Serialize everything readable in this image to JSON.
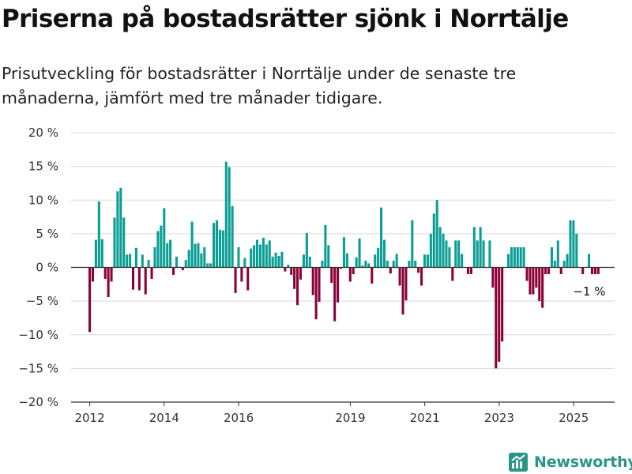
{
  "title": "Priserna på bostadsrätter sjönk i Norrtälje",
  "subtitle": "Prisutveckling för bostadsrätter i Norrtälje under de senaste tre månaderna, jämfört med tre månader tidigare.",
  "brand": "Newsworthy",
  "colors": {
    "positive": "#0a9e94",
    "negative": "#8b0037",
    "grid": "#d9d9d9",
    "brand": "#2a9687"
  },
  "chart_data": {
    "type": "bar",
    "unit": "%",
    "ylim": [
      -20,
      20
    ],
    "yticks": [
      20,
      15,
      10,
      5,
      0,
      -5,
      -10,
      -15,
      -20
    ],
    "ytick_labels": [
      "20 %",
      "15 %",
      "10 %",
      "5 %",
      "0 %",
      "−5 %",
      "−10 %",
      "−15 %",
      "−20 %"
    ],
    "xlim": [
      2011.5,
      2026.1
    ],
    "xticks": [
      2012,
      2014,
      2016,
      2019,
      2021,
      2023,
      2025
    ],
    "xtick_labels": [
      "2012",
      "2014",
      "2016",
      "2019",
      "2021",
      "2023",
      "2025"
    ],
    "grid": true,
    "annotation": {
      "text": "−1 %",
      "x": 2025.25,
      "y": -1
    },
    "series": [
      {
        "start": 2012.0,
        "step": 0.0833,
        "values": [
          -9.6,
          -2.1,
          4.1,
          9.8,
          4.2,
          -1.7,
          -4.4,
          -2.1,
          7.4,
          11.3,
          11.8,
          7.4,
          1.9,
          2.0,
          -3.3,
          2.9,
          -3.4,
          1.9,
          -4.0,
          1.1,
          -1.7,
          3.0,
          5.4,
          6.2,
          8.8,
          3.6,
          4.1,
          -1.1,
          1.6,
          0.1,
          -0.4,
          1.1,
          2.6,
          6.8,
          3.5,
          3.6,
          2.1,
          3.0,
          0.6,
          0.6,
          6.6,
          7.0,
          5.6,
          5.5,
          15.7,
          14.9,
          9.1,
          -3.8,
          3.0,
          -2.1,
          1.4,
          -3.4,
          2.8,
          3.3,
          4.1,
          3.4,
          4.4,
          3.4,
          4.0,
          1.6,
          2.2,
          1.7,
          2.3,
          -0.6,
          0.4,
          -1.1,
          -3.2,
          -5.6,
          -1.8,
          1.9,
          5.1,
          1.6,
          -4.1,
          -7.7,
          -5.1,
          1.0,
          6.3,
          3.3,
          -2.3,
          -8.0,
          -5.2,
          -0.2,
          4.5,
          2.1,
          -2.1,
          -1.0,
          1.5,
          4.3,
          0.3,
          1.0,
          0.6,
          -2.4,
          1.9,
          2.9,
          8.9,
          4.1,
          1.0,
          -0.9,
          1.0,
          2.0,
          -2.7,
          -7.0,
          -4.9,
          1.0,
          7.0,
          1.0,
          -0.8,
          -2.7,
          1.9,
          1.9,
          5.0,
          8.0,
          10.0,
          6.0,
          5.0,
          4.0,
          3.0,
          -2.0,
          4.0,
          4.0,
          2.0,
          0.0,
          -1.0,
          -1.0,
          6.0,
          4.0,
          6.0,
          4.0,
          0.0,
          4.0,
          -3.0,
          -15.0,
          -14.0,
          -11.0,
          0.0,
          2.0,
          3.0,
          3.0,
          3.0,
          3.0,
          3.0,
          -2.0,
          -4.0,
          -4.0,
          -3.0,
          -5.0,
          -6.0,
          -1.0,
          -1.0,
          3.0,
          1.0,
          4.0,
          -1.0,
          1.0,
          2.0,
          7.0,
          7.0,
          5.0,
          0.0,
          -1.0,
          0.0,
          2.0,
          -1.0,
          -1.0,
          -1.0
        ]
      }
    ]
  }
}
